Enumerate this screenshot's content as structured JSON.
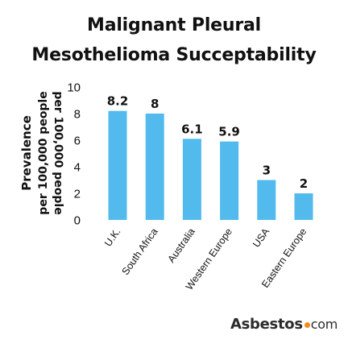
{
  "chart_data": {
    "type": "bar",
    "title": [
      "Malignant Pleural",
      "Mesothelioma Succeptability"
    ],
    "ylabel": [
      "Prevalence",
      "per 100,000 people"
    ],
    "ylabel_mirror": "per 100,000 people",
    "xlabel": "",
    "categories": [
      "U.K.",
      "South Africa",
      "Australia",
      "Western Europe",
      "USA",
      "Eastern Europe"
    ],
    "values": [
      8.2,
      8,
      6.1,
      5.9,
      3,
      2
    ],
    "value_labels": [
      "8.2",
      "8",
      "6.1",
      "5.9",
      "3",
      "2"
    ],
    "ylim": [
      0,
      10
    ],
    "yticks": [
      0,
      2,
      4,
      6,
      8,
      10
    ],
    "grid": false,
    "bar_color": "#52baed"
  },
  "branding": {
    "name": "Asbestos",
    "tld": "com",
    "dot_color": "#f28c1b"
  }
}
